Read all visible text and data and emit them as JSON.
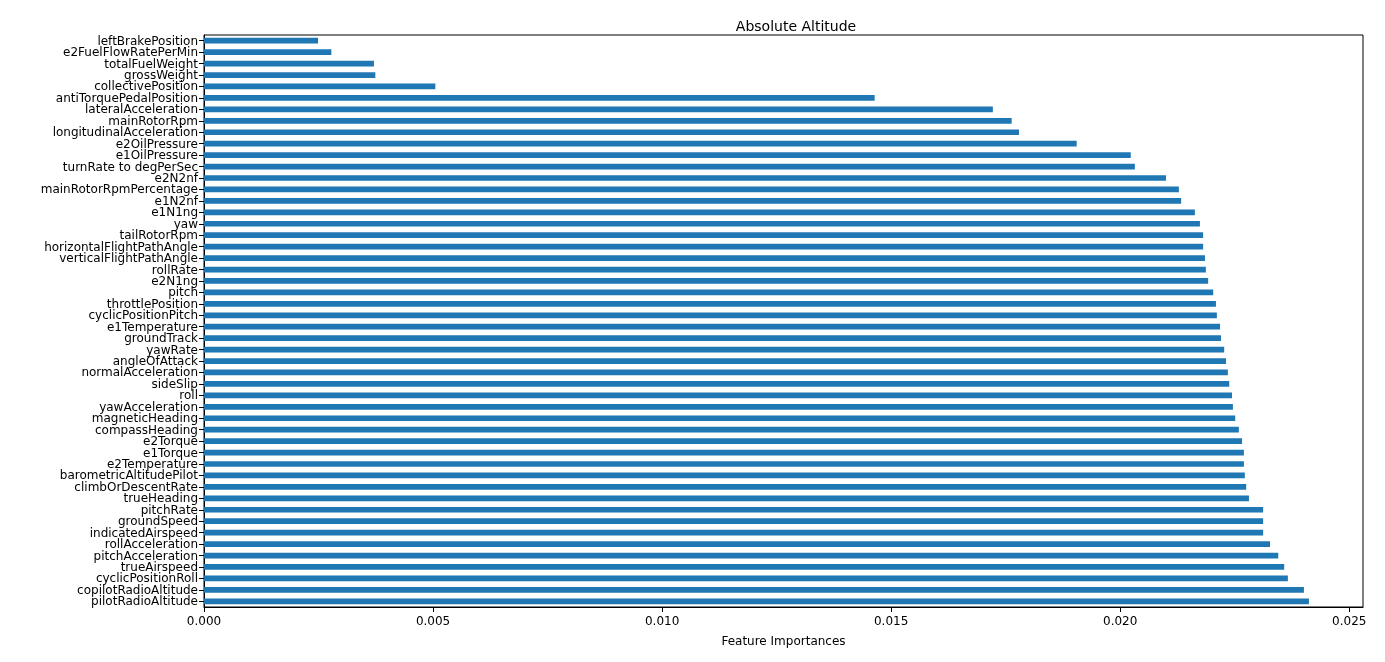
{
  "chart_data": {
    "type": "bar",
    "orientation": "horizontal",
    "title": "Absolute Altitude",
    "xlabel": "Feature Importances",
    "categories": [
      "leftBrakePosition",
      "e2FuelFlowRatePerMin",
      "totalFuelWeight",
      "grossWeight",
      "collectivePosition",
      "antiTorquePedalPosition",
      "lateralAcceleration",
      "mainRotorRpm",
      "longitudinalAcceleration",
      "e2OilPressure",
      "e1OilPressure",
      "turnRate to degPerSec",
      "e2N2nf",
      "mainRotorRpmPercentage",
      "e1N2nf",
      "e1N1ng",
      "yaw",
      "tailRotorRpm",
      "horizontalFlightPathAngle",
      "verticalFlightPathAngle",
      "rollRate",
      "e2N1ng",
      "pitch",
      "throttlePosition",
      "cyclicPositionPitch",
      "e1Temperature",
      "groundTrack",
      "yawRate",
      "angleOfAttack",
      "normalAcceleration",
      "sideSlip",
      "roll",
      "yawAcceleration",
      "magneticHeading",
      "compassHeading",
      "e2Torque",
      "e1Torque",
      "e2Temperature",
      "barometricAltitudePilot",
      "climbOrDescentRate",
      "trueHeading",
      "pitchRate",
      "groundSpeed",
      "indicatedAirspeed",
      "rollAcceleration",
      "pitchAcceleration",
      "trueAirspeed",
      "cyclicPositionRoll",
      "copilotRadioAltitude",
      "pilotRadioAltitude"
    ],
    "values": [
      0.00249,
      0.00278,
      0.00371,
      0.00374,
      0.00505,
      0.01464,
      0.01722,
      0.01763,
      0.01779,
      0.01905,
      0.02023,
      0.02032,
      0.021,
      0.02128,
      0.02133,
      0.02163,
      0.02174,
      0.02181,
      0.02181,
      0.02185,
      0.02187,
      0.02192,
      0.02203,
      0.02209,
      0.02211,
      0.02218,
      0.0222,
      0.02227,
      0.02231,
      0.02235,
      0.02238,
      0.02244,
      0.02246,
      0.02251,
      0.02259,
      0.02266,
      0.0227,
      0.0227,
      0.02272,
      0.02275,
      0.02281,
      0.02312,
      0.02312,
      0.02312,
      0.02327,
      0.02345,
      0.02358,
      0.02366,
      0.02401,
      0.02412
    ],
    "color": "#1f77b4",
    "xlim": [
      0,
      0.0253
    ],
    "xticks": [
      {
        "value": 0,
        "label": "0.000"
      },
      {
        "value": 0.005,
        "label": "0.005"
      },
      {
        "value": 0.01,
        "label": "0.010"
      },
      {
        "value": 0.015,
        "label": "0.015"
      },
      {
        "value": 0.02,
        "label": "0.020"
      },
      {
        "value": 0.025,
        "label": "0.025"
      }
    ],
    "grid": false
  }
}
